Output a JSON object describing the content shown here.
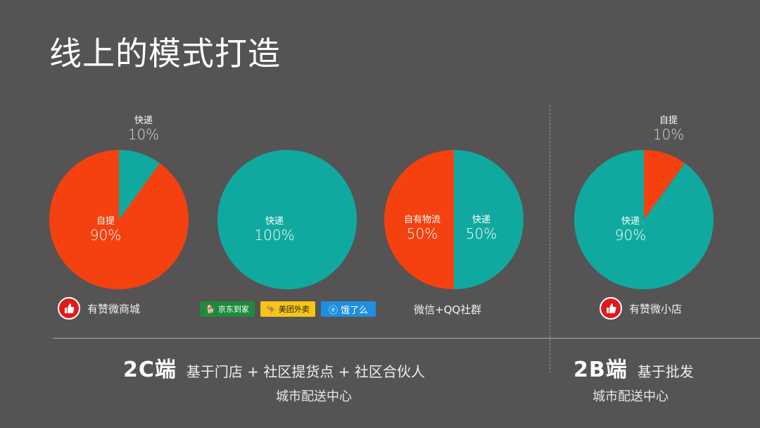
{
  "title": "线上的模式打造",
  "colors": {
    "red": "#f4410f",
    "teal": "#10a99f",
    "bg": "#555354"
  },
  "chart_data": [
    {
      "type": "pie",
      "slices": [
        {
          "label": "快递",
          "value": 10,
          "pct_text": "10%"
        },
        {
          "label": "自提",
          "value": 90,
          "pct_text": "90%"
        }
      ]
    },
    {
      "type": "pie",
      "slices": [
        {
          "label": "快递",
          "value": 100,
          "pct_text": "100%"
        }
      ]
    },
    {
      "type": "pie",
      "slices": [
        {
          "label": "快递",
          "value": 50,
          "pct_text": "50%"
        },
        {
          "label": "自有物流",
          "value": 50,
          "pct_text": "50%"
        }
      ]
    },
    {
      "type": "pie",
      "slices": [
        {
          "label": "自提",
          "value": 10,
          "pct_text": "10%"
        },
        {
          "label": "快递",
          "value": 90,
          "pct_text": "90%"
        }
      ]
    }
  ],
  "brands": {
    "b1": "有赞微商城",
    "b2": "微信+QQ社群",
    "b3": "有赞微小店",
    "jd": "京东到家",
    "meituan": "美团外卖",
    "eleme": "饿了么"
  },
  "sections": {
    "c2_title": "2C端",
    "c2_desc": "基于门店 + 社区提货点 + 社区合伙人",
    "c2_sub": "城市配送中心",
    "b2_title": "2B端",
    "b2_desc": "基于批发",
    "b2_sub": "城市配送中心"
  }
}
